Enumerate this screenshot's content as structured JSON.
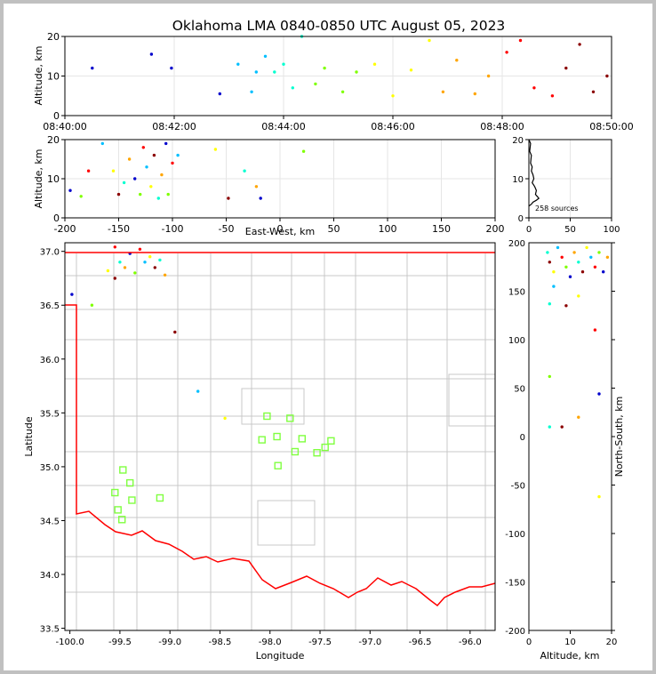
{
  "title": "Oklahoma LMA 0840-0850 UTC August 05, 2023",
  "colors": {
    "border": "#ff0000",
    "counties": "#c8c8c8",
    "stations": "#80ff40",
    "colormap": [
      "#0000cc",
      "#00bfff",
      "#00ffd0",
      "#7fff00",
      "#ffff00",
      "#ffa500",
      "#ff0000",
      "#8b0000"
    ]
  },
  "chart_data": [
    {
      "id": "time-height",
      "type": "scatter",
      "ylabel": "Altitude, km",
      "xlim": [
        "08:40:00",
        "08:50:00"
      ],
      "ylim": [
        0,
        20
      ],
      "xticks": [
        "08:40:00",
        "08:42:00",
        "08:44:00",
        "08:46:00",
        "08:48:00",
        "08:50:00"
      ],
      "yticks": [
        "0",
        "10",
        "20"
      ],
      "points": [
        [
          "08:40:30",
          12
        ],
        [
          "08:41:35",
          15.5
        ],
        [
          "08:41:57",
          12
        ],
        [
          "08:42:50",
          5.5
        ],
        [
          "08:43:10",
          13
        ],
        [
          "08:43:25",
          6
        ],
        [
          "08:43:30",
          11
        ],
        [
          "08:43:40",
          15
        ],
        [
          "08:43:50",
          11
        ],
        [
          "08:44:00",
          13
        ],
        [
          "08:44:10",
          7
        ],
        [
          "08:44:20",
          20
        ],
        [
          "08:44:35",
          8
        ],
        [
          "08:44:45",
          12
        ],
        [
          "08:45:05",
          6
        ],
        [
          "08:45:20",
          11
        ],
        [
          "08:45:40",
          13
        ],
        [
          "08:46:00",
          5
        ],
        [
          "08:46:20",
          11.5
        ],
        [
          "08:46:40",
          19
        ],
        [
          "08:46:55",
          6
        ],
        [
          "08:47:10",
          14
        ],
        [
          "08:47:30",
          5.5
        ],
        [
          "08:47:45",
          10
        ],
        [
          "08:48:05",
          16
        ],
        [
          "08:48:20",
          19
        ],
        [
          "08:48:35",
          7
        ],
        [
          "08:48:55",
          5
        ],
        [
          "08:49:10",
          12
        ],
        [
          "08:49:25",
          18
        ],
        [
          "08:49:40",
          6
        ],
        [
          "08:49:55",
          10
        ]
      ]
    },
    {
      "id": "east-west",
      "type": "scatter",
      "xlabel": "East-West, km",
      "ylabel": "Altitude, km",
      "xlim": [
        -200,
        200
      ],
      "ylim": [
        0,
        20
      ],
      "xticks": [
        "-200",
        "-150",
        "-100",
        "-50",
        "0",
        "50",
        "100",
        "150",
        "200"
      ],
      "yticks": [
        "0",
        "10",
        "20"
      ],
      "points": [
        [
          -195,
          7
        ],
        [
          -185,
          5.5
        ],
        [
          -178,
          12
        ],
        [
          -165,
          19
        ],
        [
          -155,
          12
        ],
        [
          -150,
          6
        ],
        [
          -145,
          9
        ],
        [
          -140,
          15
        ],
        [
          -135,
          10
        ],
        [
          -130,
          6
        ],
        [
          -127,
          18
        ],
        [
          -124,
          13
        ],
        [
          -120,
          8
        ],
        [
          -117,
          16
        ],
        [
          -113,
          5
        ],
        [
          -110,
          11
        ],
        [
          -106,
          19
        ],
        [
          -104,
          6
        ],
        [
          -100,
          14
        ],
        [
          -95,
          16
        ],
        [
          -60,
          17.5
        ],
        [
          -48,
          5
        ],
        [
          -33,
          12
        ],
        [
          -22,
          8
        ],
        [
          -18,
          5
        ],
        [
          22,
          17
        ]
      ]
    },
    {
      "id": "altitude-histogram",
      "type": "line",
      "xlim": [
        0,
        100
      ],
      "ylim": [
        0,
        20
      ],
      "xticks": [
        "0",
        "50",
        "100"
      ],
      "yticks": [
        "0",
        "10",
        "20"
      ],
      "annotation": "258 sources",
      "points": [
        [
          0,
          20
        ],
        [
          2,
          19
        ],
        [
          1,
          17
        ],
        [
          3,
          16
        ],
        [
          2,
          14
        ],
        [
          4,
          13
        ],
        [
          3,
          12
        ],
        [
          5,
          11
        ],
        [
          6,
          10
        ],
        [
          4,
          9
        ],
        [
          7,
          8
        ],
        [
          9,
          7
        ],
        [
          8,
          6
        ],
        [
          10,
          5.5
        ],
        [
          12,
          5
        ],
        [
          9,
          4.5
        ],
        [
          5,
          4
        ],
        [
          3,
          3.5
        ],
        [
          0,
          3
        ]
      ]
    },
    {
      "id": "plan-view",
      "type": "scatter",
      "xlabel": "Longitude",
      "ylabel": "Latitude",
      "xlim": [
        -100.05,
        -95.75
      ],
      "ylim": [
        33.48,
        37.08
      ],
      "xticks": [
        "-100.0",
        "-99.5",
        "-99.0",
        "-98.5",
        "-98.0",
        "-97.5",
        "-97.0",
        "-96.5",
        "-96.0"
      ],
      "yticks": [
        "33.5",
        "34.0",
        "34.5",
        "35.0",
        "35.5",
        "36.0",
        "36.5",
        "37.0"
      ],
      "stations": [
        [
          -99.55,
          34.76
        ],
        [
          -99.52,
          34.6
        ],
        [
          -99.48,
          34.51
        ],
        [
          -99.47,
          34.97
        ],
        [
          -99.4,
          34.85
        ],
        [
          -99.38,
          34.69
        ],
        [
          -99.1,
          34.71
        ],
        [
          -98.08,
          35.25
        ],
        [
          -98.03,
          35.47
        ],
        [
          -97.93,
          35.28
        ],
        [
          -97.92,
          35.01
        ],
        [
          -97.8,
          35.45
        ],
        [
          -97.75,
          35.14
        ],
        [
          -97.68,
          35.26
        ],
        [
          -97.53,
          35.13
        ],
        [
          -97.45,
          35.18
        ],
        [
          -97.39,
          35.24
        ]
      ],
      "points": [
        [
          -99.62,
          36.82
        ],
        [
          -99.55,
          36.75
        ],
        [
          -99.5,
          36.9
        ],
        [
          -99.45,
          36.85
        ],
        [
          -99.4,
          36.98
        ],
        [
          -99.35,
          36.8
        ],
        [
          -99.3,
          37.02
        ],
        [
          -99.25,
          36.9
        ],
        [
          -99.2,
          36.95
        ],
        [
          -99.15,
          36.85
        ],
        [
          -99.1,
          36.92
        ],
        [
          -99.05,
          36.78
        ],
        [
          -99.98,
          36.6
        ],
        [
          -99.78,
          36.5
        ],
        [
          -99.55,
          37.04
        ],
        [
          -98.72,
          35.7
        ],
        [
          -98.45,
          35.45
        ],
        [
          -98.95,
          36.25
        ]
      ]
    },
    {
      "id": "north-south",
      "type": "scatter",
      "xlabel": "Altitude, km",
      "ylabel": "North-South, km",
      "xlim": [
        0,
        20
      ],
      "ylim": [
        -200,
        200
      ],
      "xticks": [
        "0",
        "10",
        "20"
      ],
      "yticks": [
        "-200",
        "-150",
        "-100",
        "-50",
        "0",
        "50",
        "100",
        "150",
        "200"
      ],
      "points": [
        [
          4.5,
          190
        ],
        [
          5,
          180
        ],
        [
          6,
          170
        ],
        [
          7,
          195
        ],
        [
          8,
          185
        ],
        [
          9,
          175
        ],
        [
          10,
          165
        ],
        [
          11,
          190
        ],
        [
          12,
          180
        ],
        [
          13,
          170
        ],
        [
          14,
          195
        ],
        [
          15,
          185
        ],
        [
          16,
          175
        ],
        [
          17,
          190
        ],
        [
          18,
          170
        ],
        [
          19,
          185
        ],
        [
          5,
          137
        ],
        [
          9,
          135
        ],
        [
          12,
          145
        ],
        [
          6,
          155
        ],
        [
          16,
          110
        ],
        [
          5,
          62
        ],
        [
          17,
          44
        ],
        [
          12,
          20
        ],
        [
          5,
          10
        ],
        [
          8,
          10
        ],
        [
          17,
          -62
        ]
      ]
    }
  ]
}
